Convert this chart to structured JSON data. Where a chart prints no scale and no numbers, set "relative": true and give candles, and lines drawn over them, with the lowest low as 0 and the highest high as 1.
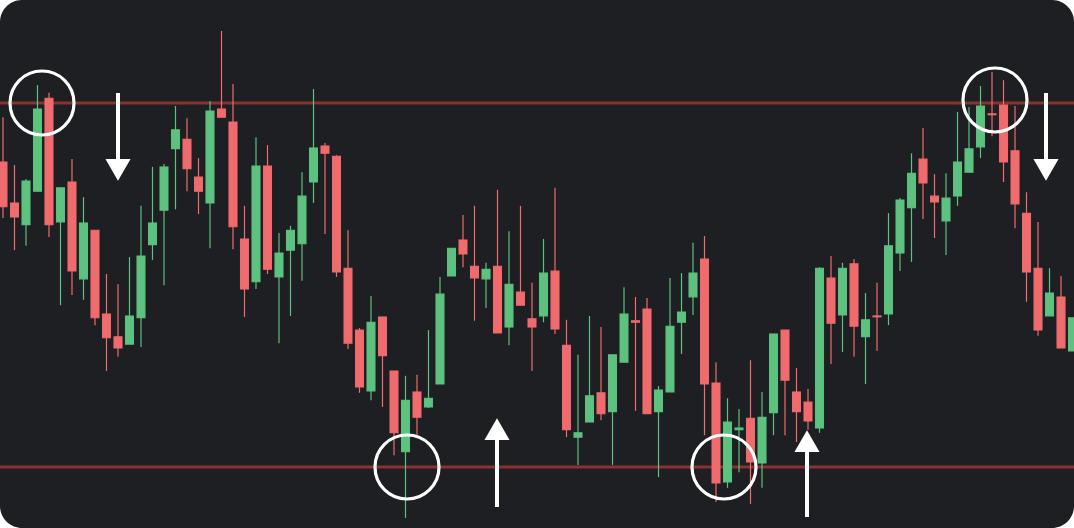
{
  "chart_data": {
    "type": "candlestick",
    "relative": true,
    "categories": [
      null,
      null,
      null,
      null,
      null,
      null,
      null,
      null,
      null,
      null,
      null,
      null,
      null,
      null,
      null,
      null,
      null,
      null,
      null,
      null,
      null,
      null,
      null,
      null,
      null,
      null,
      null,
      null,
      null,
      null,
      null,
      null,
      null,
      null,
      null,
      null,
      null,
      null,
      null,
      null,
      null,
      null,
      null,
      null,
      null,
      null,
      null,
      null,
      null,
      null,
      null,
      null,
      null,
      null,
      null,
      null,
      null,
      null,
      null,
      null,
      null,
      null,
      null,
      null,
      null,
      null,
      null,
      null,
      null,
      null,
      null,
      null,
      null,
      null,
      null,
      null,
      null,
      null,
      null,
      null,
      null,
      null,
      null,
      null,
      null,
      null,
      null,
      null,
      null,
      null,
      null,
      null,
      null,
      null
    ],
    "ohlc": [
      [
        0.731,
        0.823,
        0.616,
        0.639
      ],
      [
        0.647,
        0.725,
        0.55,
        0.618
      ],
      [
        0.602,
        0.696,
        0.559,
        0.692
      ],
      [
        0.671,
        0.889,
        0.671,
        0.84
      ],
      [
        0.862,
        0.873,
        0.577,
        0.602
      ],
      [
        0.608,
        0.678,
        0.437,
        0.678
      ],
      [
        0.69,
        0.737,
        0.458,
        0.507
      ],
      [
        0.491,
        0.659,
        0.448,
        0.606
      ],
      [
        0.591,
        0.591,
        0.396,
        0.411
      ],
      [
        0.419,
        0.501,
        0.302,
        0.37
      ],
      [
        0.372,
        0.48,
        0.331,
        0.349
      ],
      [
        0.357,
        0.536,
        0.357,
        0.415
      ],
      [
        0.411,
        0.641,
        0.351,
        0.538
      ],
      [
        0.561,
        0.721,
        0.53,
        0.606
      ],
      [
        0.632,
        0.727,
        0.478,
        0.721
      ],
      [
        0.758,
        0.846,
        0.634,
        0.797
      ],
      [
        0.778,
        0.821,
        0.671,
        0.717
      ],
      [
        0.7,
        0.739,
        0.624,
        0.671
      ],
      [
        0.647,
        0.856,
        0.554,
        0.836
      ],
      [
        0.84,
        1,
        0.823,
        0.823
      ],
      [
        0.813,
        0.891,
        0.552,
        0.598
      ],
      [
        0.573,
        0.641,
        0.413,
        0.47
      ],
      [
        0.485,
        0.782,
        0.47,
        0.723
      ],
      [
        0.723,
        0.766,
        0.501,
        0.511
      ],
      [
        0.495,
        0.585,
        0.359,
        0.544
      ],
      [
        0.55,
        0.6,
        0.415,
        0.591
      ],
      [
        0.563,
        0.71,
        0.487,
        0.661
      ],
      [
        0.69,
        0.881,
        0.647,
        0.76
      ],
      [
        0.764,
        0.77,
        0.583,
        0.749
      ],
      [
        0.743,
        0.745,
        0.495,
        0.505
      ],
      [
        0.513,
        0.591,
        0.347,
        0.359
      ],
      [
        0.386,
        0.39,
        0.257,
        0.269
      ],
      [
        0.261,
        0.456,
        0.242,
        0.402
      ],
      [
        0.413,
        0.413,
        0.228,
        0.333
      ],
      [
        0.302,
        0.302,
        0.129,
        0.175
      ],
      [
        0.136,
        0.292,
        0,
        0.242
      ],
      [
        0.259,
        0.294,
        0.166,
        0.207
      ],
      [
        0.228,
        0.386,
        0.226,
        0.246
      ],
      [
        0.275,
        0.495,
        0.275,
        0.46
      ],
      [
        0.497,
        0.554,
        0.497,
        0.554
      ],
      [
        0.571,
        0.622,
        0.515,
        0.542
      ],
      [
        0.517,
        0.641,
        0.405,
        0.493
      ],
      [
        0.491,
        0.524,
        0.431,
        0.511
      ],
      [
        0.517,
        0.674,
        0.38,
        0.38
      ],
      [
        0.392,
        0.589,
        0.355,
        0.48
      ],
      [
        0.464,
        0.641,
        0.437,
        0.437
      ],
      [
        0.409,
        0.483,
        0.302,
        0.392
      ],
      [
        0.415,
        0.573,
        0.402,
        0.503
      ],
      [
        0.507,
        0.678,
        0.378,
        0.388
      ],
      [
        0.355,
        0.407,
        0.166,
        0.181
      ],
      [
        0.166,
        0.335,
        0.109,
        0.175
      ],
      [
        0.197,
        0.415,
        0.197,
        0.251
      ],
      [
        0.257,
        0.392,
        0.201,
        0.214
      ],
      [
        0.218,
        0.335,
        0.109,
        0.335
      ],
      [
        0.32,
        0.474,
        0.32,
        0.419
      ],
      [
        0.405,
        0.454,
        0.22,
        0.402
      ],
      [
        0.429,
        0.452,
        0.214,
        0.214
      ],
      [
        0.218,
        0.271,
        0.084,
        0.263
      ],
      [
        0.259,
        0.493,
        0.259,
        0.394
      ],
      [
        0.402,
        0.503,
        0.337,
        0.423
      ],
      [
        0.454,
        0.565,
        0.417,
        0.503
      ],
      [
        0.532,
        0.579,
        0.17,
        0.275
      ],
      [
        0.277,
        0.32,
        0.033,
        0.072
      ],
      [
        0.074,
        0.246,
        0.062,
        0.197
      ],
      [
        0.181,
        0.224,
        0.094,
        0.185
      ],
      [
        0.205,
        0.324,
        0.029,
        0.115
      ],
      [
        0.113,
        0.259,
        0.062,
        0.207
      ],
      [
        0.216,
        0.378,
        0.17,
        0.378
      ],
      [
        0.386,
        0.386,
        0.17,
        0.283
      ],
      [
        0.259,
        0.308,
        0.156,
        0.218
      ],
      [
        0.238,
        0.265,
        0.181,
        0.199
      ],
      [
        0.185,
        0.515,
        0.175,
        0.513
      ],
      [
        0.493,
        0.538,
        0.316,
        0.4
      ],
      [
        0.417,
        0.524,
        0.341,
        0.513
      ],
      [
        0.522,
        0.532,
        0.331,
        0.394
      ],
      [
        0.372,
        0.462,
        0.275,
        0.407
      ],
      [
        0.415,
        0.483,
        0.343,
        0.413
      ],
      [
        0.419,
        0.626,
        0.396,
        0.559
      ],
      [
        0.544,
        0.657,
        0.507,
        0.653
      ],
      [
        0.637,
        0.749,
        0.526,
        0.708
      ],
      [
        0.737,
        0.801,
        0.614,
        0.688
      ],
      [
        0.661,
        0.706,
        0.575,
        0.649
      ],
      [
        0.61,
        0.708,
        0.54,
        0.657
      ],
      [
        0.661,
        0.834,
        0.641,
        0.731
      ],
      [
        0.71,
        0.844,
        0.71,
        0.758
      ],
      [
        0.762,
        0.887,
        0.739,
        0.846
      ],
      [
        0.83,
        0.916,
        0.784,
        0.828
      ],
      [
        0.848,
        0.899,
        0.69,
        0.731
      ],
      [
        0.754,
        0.846,
        0.595,
        0.645
      ],
      [
        0.626,
        0.669,
        0.444,
        0.505
      ],
      [
        0.513,
        0.608,
        0.374,
        0.386
      ],
      [
        0.415,
        0.513,
        0.415,
        0.462
      ],
      [
        0.454,
        0.497,
        0.349,
        0.349
      ],
      [
        0.343,
        0.411,
        0.343,
        0.411
      ]
    ],
    "colors": [
      "#ef6b6d",
      "#ef6b6d",
      "#5dc17f",
      "#5dc17f",
      "#ef6b6d",
      "#5dc17f",
      "#ef6b6d",
      "#5dc17f",
      "#ef6b6d",
      "#ef6b6d",
      "#ef6b6d",
      "#5dc17f",
      "#5dc17f",
      "#5dc17f",
      "#5dc17f",
      "#5dc17f",
      "#ef6b6d",
      "#ef6b6d",
      "#5dc17f",
      "#ef6b6d",
      "#ef6b6d",
      "#ef6b6d",
      "#5dc17f",
      "#ef6b6d",
      "#5dc17f",
      "#5dc17f",
      "#5dc17f",
      "#5dc17f",
      "#ef6b6d",
      "#ef6b6d",
      "#ef6b6d",
      "#ef6b6d",
      "#5dc17f",
      "#ef6b6d",
      "#ef6b6d",
      "#5dc17f",
      "#ef6b6d",
      "#5dc17f",
      "#5dc17f",
      "#5dc17f",
      "#ef6b6d",
      "#ef6b6d",
      "#5dc17f",
      "#ef6b6d",
      "#5dc17f",
      "#ef6b6d",
      "#ef6b6d",
      "#5dc17f",
      "#ef6b6d",
      "#ef6b6d",
      "#5dc17f",
      "#5dc17f",
      "#ef6b6d",
      "#5dc17f",
      "#5dc17f",
      "#ef6b6d",
      "#ef6b6d",
      "#5dc17f",
      "#5dc17f",
      "#5dc17f",
      "#5dc17f",
      "#ef6b6d",
      "#ef6b6d",
      "#5dc17f",
      "#5dc17f",
      "#ef6b6d",
      "#5dc17f",
      "#5dc17f",
      "#ef6b6d",
      "#ef6b6d",
      "#ef6b6d",
      "#5dc17f",
      "#ef6b6d",
      "#5dc17f",
      "#ef6b6d",
      "#5dc17f",
      "#ef6b6d",
      "#5dc17f",
      "#5dc17f",
      "#5dc17f",
      "#ef6b6d",
      "#ef6b6d",
      "#5dc17f",
      "#5dc17f",
      "#5dc17f",
      "#5dc17f",
      "#ef6b6d",
      "#ef6b6d",
      "#ef6b6d",
      "#ef6b6d",
      "#ef6b6d",
      "#5dc17f",
      "#ef6b6d",
      "#5dc17f"
    ],
    "ref_lines": [
      {
        "axis": "y",
        "value": 0.852,
        "color": "#8c3131"
      },
      {
        "axis": "y",
        "value": 0.105,
        "color": "#8c3131"
      }
    ]
  }
}
